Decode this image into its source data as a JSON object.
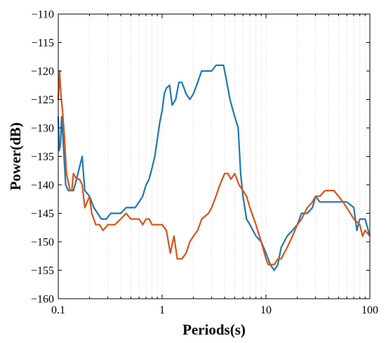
{
  "chart_data": {
    "type": "line",
    "title": "",
    "xlabel": "Periods(s)",
    "ylabel": "Power(dB)",
    "xscale": "log",
    "xlim": [
      0.1,
      100
    ],
    "ylim": [
      -160,
      -110
    ],
    "xticks": [
      {
        "value": 0.1,
        "label": "0.1"
      },
      {
        "value": 1,
        "label": "1"
      },
      {
        "value": 10,
        "label": "10"
      },
      {
        "value": 100,
        "label": "100"
      }
    ],
    "yticks": [
      {
        "value": -110,
        "label": "-110"
      },
      {
        "value": -115,
        "label": "-115"
      },
      {
        "value": -120,
        "label": "-120"
      },
      {
        "value": -125,
        "label": "-125"
      },
      {
        "value": -130,
        "label": "-130"
      },
      {
        "value": -135,
        "label": "-135"
      },
      {
        "value": -140,
        "label": "-140"
      },
      {
        "value": -145,
        "label": "-145"
      },
      {
        "value": -150,
        "label": "-150"
      },
      {
        "value": -155,
        "label": "-155"
      },
      {
        "value": -160,
        "label": "-160"
      }
    ],
    "grid": "vertical minor (log decades)",
    "legend": "none",
    "series": [
      {
        "color": "#1f77b4",
        "points": [
          [
            0.1,
            -128
          ],
          [
            0.102,
            -134
          ],
          [
            0.105,
            -133
          ],
          [
            0.108,
            -128
          ],
          [
            0.112,
            -133
          ],
          [
            0.118,
            -140
          ],
          [
            0.125,
            -141
          ],
          [
            0.14,
            -141
          ],
          [
            0.15,
            -139
          ],
          [
            0.17,
            -135
          ],
          [
            0.18,
            -141
          ],
          [
            0.2,
            -142
          ],
          [
            0.22,
            -144
          ],
          [
            0.26,
            -146
          ],
          [
            0.29,
            -146
          ],
          [
            0.32,
            -145
          ],
          [
            0.4,
            -145
          ],
          [
            0.45,
            -144
          ],
          [
            0.55,
            -144
          ],
          [
            0.6,
            -143
          ],
          [
            0.65,
            -142
          ],
          [
            0.7,
            -140
          ],
          [
            0.75,
            -139
          ],
          [
            0.8,
            -137
          ],
          [
            0.85,
            -135
          ],
          [
            0.9,
            -132
          ],
          [
            0.95,
            -129
          ],
          [
            1.0,
            -127
          ],
          [
            1.05,
            -124
          ],
          [
            1.1,
            -123
          ],
          [
            1.18,
            -122.5
          ],
          [
            1.25,
            -126
          ],
          [
            1.35,
            -125
          ],
          [
            1.45,
            -122
          ],
          [
            1.55,
            -122
          ],
          [
            1.7,
            -124
          ],
          [
            1.85,
            -125
          ],
          [
            2.0,
            -124
          ],
          [
            2.2,
            -122
          ],
          [
            2.4,
            -120
          ],
          [
            2.8,
            -120
          ],
          [
            3.0,
            -120
          ],
          [
            3.3,
            -119
          ],
          [
            3.6,
            -119
          ],
          [
            3.9,
            -119
          ],
          [
            4.1,
            -121
          ],
          [
            4.5,
            -125
          ],
          [
            5.0,
            -128
          ],
          [
            5.4,
            -130
          ],
          [
            5.7,
            -138
          ],
          [
            6.0,
            -142
          ],
          [
            6.5,
            -146
          ],
          [
            7.0,
            -147
          ],
          [
            8.0,
            -149
          ],
          [
            9.0,
            -150
          ],
          [
            10.0,
            -152
          ],
          [
            11.0,
            -154
          ],
          [
            12.0,
            -155
          ],
          [
            13.0,
            -154
          ],
          [
            14.0,
            -151
          ],
          [
            16.0,
            -149
          ],
          [
            18.0,
            -148
          ],
          [
            20.0,
            -147
          ],
          [
            22.0,
            -145
          ],
          [
            25.0,
            -145
          ],
          [
            28.0,
            -144
          ],
          [
            30.0,
            -142
          ],
          [
            33.0,
            -143
          ],
          [
            40.0,
            -143
          ],
          [
            50.0,
            -143
          ],
          [
            60.0,
            -143
          ],
          [
            70.0,
            -144
          ],
          [
            75.0,
            -148
          ],
          [
            80.0,
            -146
          ],
          [
            90.0,
            -146
          ],
          [
            100.0,
            -149
          ]
        ]
      },
      {
        "color": "#d95319",
        "points": [
          [
            0.1,
            -125
          ],
          [
            0.103,
            -120
          ],
          [
            0.106,
            -124
          ],
          [
            0.11,
            -127
          ],
          [
            0.115,
            -132
          ],
          [
            0.12,
            -138
          ],
          [
            0.13,
            -141
          ],
          [
            0.135,
            -141
          ],
          [
            0.14,
            -138
          ],
          [
            0.15,
            -139
          ],
          [
            0.16,
            -139
          ],
          [
            0.17,
            -140
          ],
          [
            0.18,
            -144
          ],
          [
            0.2,
            -142
          ],
          [
            0.21,
            -145
          ],
          [
            0.23,
            -147
          ],
          [
            0.25,
            -147
          ],
          [
            0.27,
            -148
          ],
          [
            0.3,
            -147
          ],
          [
            0.35,
            -147
          ],
          [
            0.4,
            -146
          ],
          [
            0.45,
            -145
          ],
          [
            0.5,
            -146
          ],
          [
            0.55,
            -146
          ],
          [
            0.6,
            -146
          ],
          [
            0.65,
            -147
          ],
          [
            0.7,
            -146
          ],
          [
            0.75,
            -146
          ],
          [
            0.8,
            -147
          ],
          [
            0.9,
            -147
          ],
          [
            1.0,
            -147
          ],
          [
            1.1,
            -148
          ],
          [
            1.2,
            -152
          ],
          [
            1.3,
            -149
          ],
          [
            1.4,
            -153
          ],
          [
            1.55,
            -153
          ],
          [
            1.7,
            -152
          ],
          [
            1.85,
            -150
          ],
          [
            2.0,
            -149
          ],
          [
            2.2,
            -148
          ],
          [
            2.4,
            -146
          ],
          [
            2.8,
            -145
          ],
          [
            3.0,
            -144
          ],
          [
            3.3,
            -142
          ],
          [
            3.6,
            -140
          ],
          [
            4.0,
            -138
          ],
          [
            4.3,
            -138
          ],
          [
            4.6,
            -139
          ],
          [
            5.0,
            -138
          ],
          [
            5.5,
            -140
          ],
          [
            6.0,
            -141
          ],
          [
            6.5,
            -142
          ],
          [
            7.0,
            -144
          ],
          [
            8.0,
            -147
          ],
          [
            9.0,
            -150
          ],
          [
            10.0,
            -153
          ],
          [
            10.5,
            -154
          ],
          [
            12.0,
            -154
          ],
          [
            13.0,
            -153
          ],
          [
            14.0,
            -153
          ],
          [
            16.0,
            -151
          ],
          [
            18.0,
            -149
          ],
          [
            20.0,
            -147
          ],
          [
            22.0,
            -146
          ],
          [
            25.0,
            -144
          ],
          [
            28.0,
            -143
          ],
          [
            30.0,
            -142
          ],
          [
            33.0,
            -142
          ],
          [
            37.0,
            -141
          ],
          [
            45.0,
            -141
          ],
          [
            50.0,
            -142
          ],
          [
            55.0,
            -143
          ],
          [
            60.0,
            -144
          ],
          [
            70.0,
            -146
          ],
          [
            80.0,
            -147
          ],
          [
            85.0,
            -149
          ],
          [
            90.0,
            -148
          ],
          [
            100.0,
            -149
          ]
        ]
      }
    ]
  }
}
